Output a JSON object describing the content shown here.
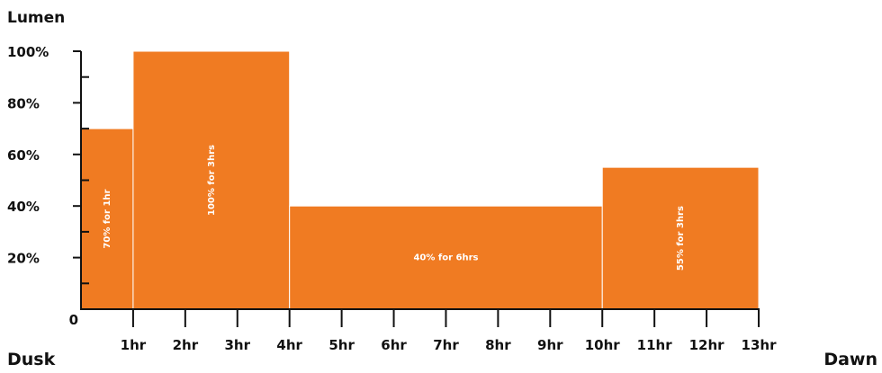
{
  "chart_data": {
    "type": "bar",
    "ylabel": "Lumen",
    "start_label": "Dusk",
    "end_label": "Dawn",
    "x_ticks": [
      "0",
      "1hr",
      "2hr",
      "3hr",
      "4hr",
      "5hr",
      "6hr",
      "7hr",
      "8hr",
      "9hr",
      "10hr",
      "11hr",
      "12hr",
      "13hr"
    ],
    "y_ticks": [
      "20%",
      "40%",
      "60%",
      "80%",
      "100%"
    ],
    "xlim": [
      0,
      13
    ],
    "ylim": [
      0,
      100
    ],
    "bars": [
      {
        "start": 0,
        "end": 1,
        "value": 70,
        "label": "70% for 1hr",
        "orientation": "vertical"
      },
      {
        "start": 1,
        "end": 4,
        "value": 100,
        "label": "100% for 3hrs",
        "orientation": "vertical"
      },
      {
        "start": 4,
        "end": 10,
        "value": 40,
        "label": "40% for 6hrs",
        "orientation": "horizontal"
      },
      {
        "start": 10,
        "end": 13,
        "value": 55,
        "label": "55% for 3hrs",
        "orientation": "vertical"
      }
    ],
    "bar_color": "#F07B22",
    "axis_color": "#111111"
  }
}
